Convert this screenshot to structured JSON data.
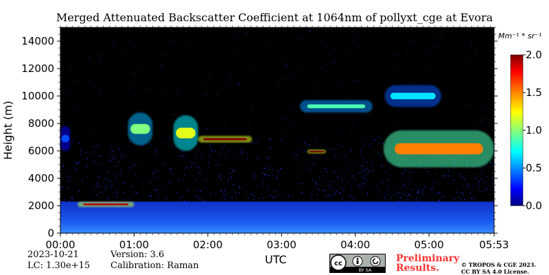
{
  "title": "Merged Attenuated Backscatter Coefficient at 1064nm of pollyxt_cge at Evora",
  "chart_data": {
    "type": "heatmap",
    "title": "Merged Attenuated Backscatter Coefficient at 1064nm of pollyxt_cge at Evora",
    "xlabel": "UTC",
    "ylabel": "Height (m)",
    "x_ticks": [
      "00:00",
      "01:00",
      "02:00",
      "03:00",
      "04:00",
      "05:00",
      "05:53"
    ],
    "x_tick_minutes": [
      0,
      60,
      120,
      180,
      240,
      300,
      353
    ],
    "xlim_minutes": [
      0,
      353
    ],
    "y_ticks": [
      0,
      2000,
      4000,
      6000,
      8000,
      10000,
      12000,
      14000
    ],
    "ylim": [
      0,
      15000
    ],
    "colorbar": {
      "unit": "Mm⁻¹ * sr⁻¹",
      "ticks": [
        "0.0",
        "0.5",
        "1.0",
        "1.5",
        "2.0"
      ],
      "range": [
        0,
        2.0
      ],
      "colormap": "jet"
    },
    "features": [
      {
        "label": "boundary layer",
        "t_start": 0,
        "t_end": 353,
        "h_bottom": 0,
        "h_top": 2300,
        "value": 0.25
      },
      {
        "label": "aerosol layer",
        "t_start": 14,
        "t_end": 60,
        "h_bottom": 1900,
        "h_top": 2300,
        "value": 1.9
      },
      {
        "label": "cloud",
        "t_start": 0,
        "t_end": 8,
        "h_bottom": 6000,
        "h_top": 7800,
        "value": 0.4
      },
      {
        "label": "cloud",
        "t_start": 55,
        "t_end": 75,
        "h_bottom": 6400,
        "h_top": 8800,
        "value": 1.0
      },
      {
        "label": "cloud",
        "t_start": 92,
        "t_end": 112,
        "h_bottom": 6000,
        "h_top": 8600,
        "value": 1.2
      },
      {
        "label": "cloud",
        "t_start": 112,
        "t_end": 156,
        "h_bottom": 6600,
        "h_top": 7100,
        "value": 2.0
      },
      {
        "label": "cloud",
        "t_start": 201,
        "t_end": 216,
        "h_bottom": 5800,
        "h_top": 6100,
        "value": 2.0
      },
      {
        "label": "cirrus",
        "t_start": 195,
        "t_end": 254,
        "h_bottom": 8800,
        "h_top": 9700,
        "value": 0.9
      },
      {
        "label": "cirrus",
        "t_start": 264,
        "t_end": 310,
        "h_bottom": 9200,
        "h_top": 10800,
        "value": 0.7
      },
      {
        "label": "cloud",
        "t_start": 263,
        "t_end": 353,
        "h_bottom": 4800,
        "h_top": 7500,
        "value": 1.5
      }
    ]
  },
  "footer": {
    "date": "2023-10-21",
    "lc": "LC: 1.30e+15",
    "version": "Version: 3.6",
    "calibration": "Calibration: Raman",
    "preliminary_line1": "Preliminary",
    "preliminary_line2": "Results.",
    "copyright_line1": "© TROPOS & CGE 2023.",
    "copyright_line2": "CC BY SA 4.0 License.",
    "license_badge_text": "BY SA"
  }
}
